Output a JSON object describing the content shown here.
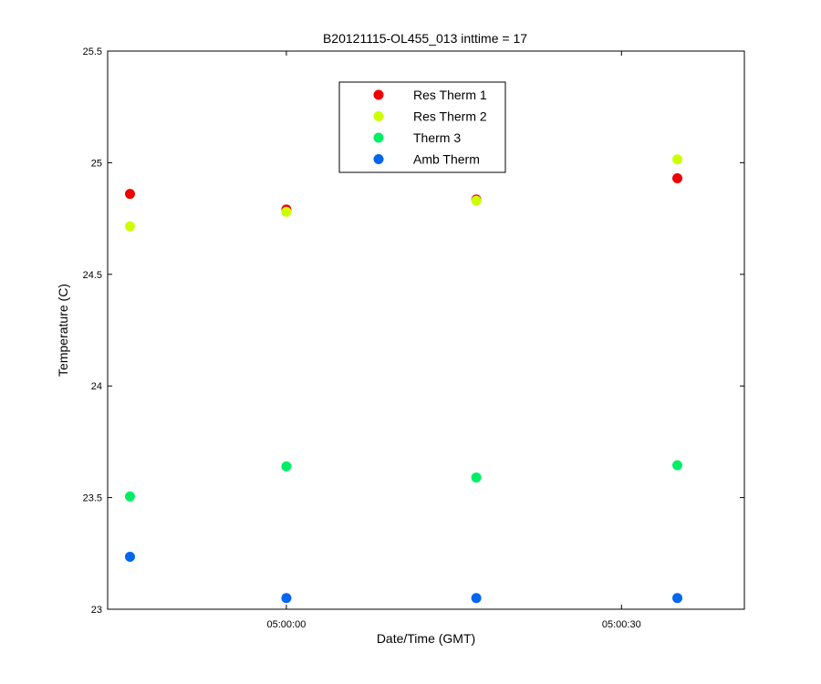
{
  "chart_data": {
    "type": "scatter",
    "title": "B20121115-OL455_013 inttime = 17",
    "xlabel": "Date/Time (GMT)",
    "ylabel": "Temperature (C)",
    "xlim": [
      "04:59:44",
      "05:00:41"
    ],
    "ylim": [
      23,
      25.5
    ],
    "y_ticks": [
      {
        "value": 23,
        "label": "23"
      },
      {
        "value": 23.5,
        "label": "23.5"
      },
      {
        "value": 24,
        "label": "24"
      },
      {
        "value": 24.5,
        "label": "24.5"
      },
      {
        "value": 25,
        "label": "25"
      },
      {
        "value": 25.5,
        "label": "25.5"
      }
    ],
    "x_ticks": [
      {
        "value": "05:00:00",
        "label": "05:00:00"
      },
      {
        "value": "05:00:30",
        "label": "05:00:30"
      }
    ],
    "x": [
      "04:59:46",
      "05:00:00",
      "05:00:17",
      "05:00:35"
    ],
    "grid": false,
    "legend_position": "top-center",
    "series": [
      {
        "name": "Res Therm 1",
        "color": "#ee0000",
        "values": [
          24.86,
          24.79,
          24.835,
          24.93
        ]
      },
      {
        "name": "Res Therm 2",
        "color": "#ccff00",
        "values": [
          24.715,
          24.78,
          24.83,
          25.015
        ]
      },
      {
        "name": "Therm 3",
        "color": "#00ee66",
        "values": [
          23.505,
          23.64,
          23.59,
          23.645
        ]
      },
      {
        "name": "Amb Therm",
        "color": "#0066ee",
        "values": [
          23.235,
          23.05,
          23.05,
          23.05
        ]
      }
    ]
  }
}
